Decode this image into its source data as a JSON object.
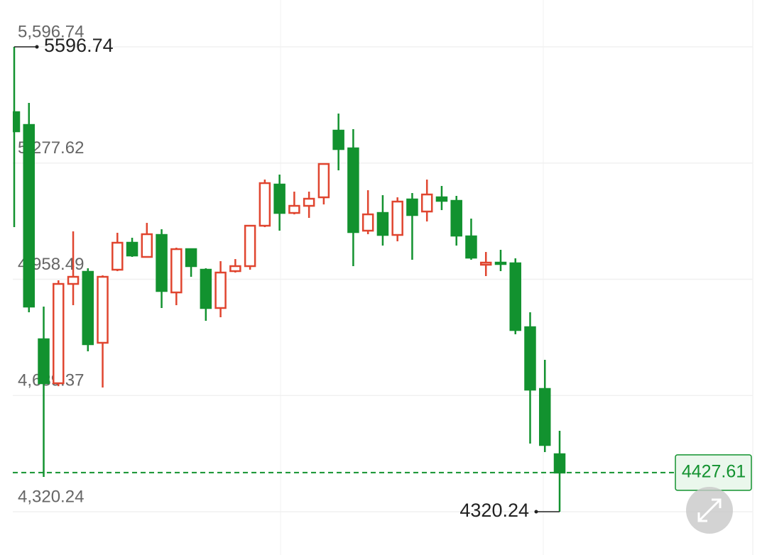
{
  "chart_data": {
    "type": "candlestick",
    "open": [
      5417.5,
      5382.4,
      4793.8,
      4673.0,
      4945.8,
      4979.0,
      4784.1,
      4984.8,
      5058.9,
      5019.9,
      5080.3,
      4922.4,
      5041.3,
      4984.8,
      4879.6,
      4980.9,
      4994.6,
      5105.6,
      5218.7,
      5140.7,
      5160.2,
      5183.6,
      5366.8,
      5318.1,
      5092.0,
      5140.7,
      5080.3,
      5177.8,
      5144.6,
      5183.6,
      5173.9,
      5076.4,
      4998.5,
      5004.3,
      5002.4,
      4826.9,
      4657.4,
      4478.1
    ],
    "high": [
      5596.74,
      5442.9,
      4883.5,
      4955.6,
      5090.1,
      4988.7,
      4969.2,
      5086.2,
      5072.5,
      5113.4,
      5095.9,
      5045.2,
      5041.3,
      4988.7,
      5008.2,
      5014.0,
      5105.6,
      5232.3,
      5246.0,
      5199.2,
      5199.2,
      5275.2,
      5413.6,
      5370.7,
      5203.1,
      5189.5,
      5183.6,
      5195.3,
      5232.3,
      5214.8,
      5187.5,
      5125.1,
      5033.5,
      5039.4,
      5016.0,
      4867.9,
      4737.3,
      4542.4
    ],
    "low": [
      5101.8,
      4867.9,
      4415.7,
      4665.0,
      4887.4,
      4760.7,
      4661.3,
      4980.9,
      5019.9,
      5019.9,
      4879.6,
      4887.4,
      4965.3,
      4844.5,
      4854.2,
      4977.0,
      4984.8,
      5101.8,
      5092.0,
      5136.8,
      5127.1,
      5164.1,
      5257.7,
      4994.6,
      5082.3,
      5051.1,
      5062.8,
      5012.1,
      5117.3,
      5148.5,
      5051.1,
      5012.1,
      4967.3,
      4980.9,
      4807.5,
      4507.3,
      4483.9,
      4320.24
    ],
    "close": [
      5364.9,
      4883.5,
      4673.0,
      4945.8,
      4965.3,
      4780.2,
      4965.3,
      5058.9,
      5023.8,
      5082.3,
      4926.3,
      5041.3,
      4994.6,
      4879.6,
      4977.0,
      4994.6,
      5105.6,
      5222.6,
      5140.7,
      5160.2,
      5179.7,
      5275.2,
      5316.1,
      5088.1,
      5136.8,
      5080.3,
      5171.9,
      5134.9,
      5191.4,
      5173.9,
      5078.4,
      5017.9,
      5004.3,
      5000.4,
      4819.1,
      4655.4,
      4503.4,
      4427.61
    ],
    "up_color": "#e0452f",
    "down_color": "#12922f",
    "ylim": [
      4201.3,
      5725.5
    ],
    "yticks": [
      {
        "value": 5596.74,
        "label": "5,596.74"
      },
      {
        "value": 5277.62,
        "label": "5,277.62"
      },
      {
        "value": 4958.49,
        "label": "4,958.49"
      },
      {
        "value": 4639.37,
        "label": "4,639.37"
      },
      {
        "value": 4320.24,
        "label": "4,320.24"
      }
    ],
    "grid": true,
    "max_marker": 5596.74,
    "min_marker": 4320.24,
    "last_price": 4427.61
  }
}
